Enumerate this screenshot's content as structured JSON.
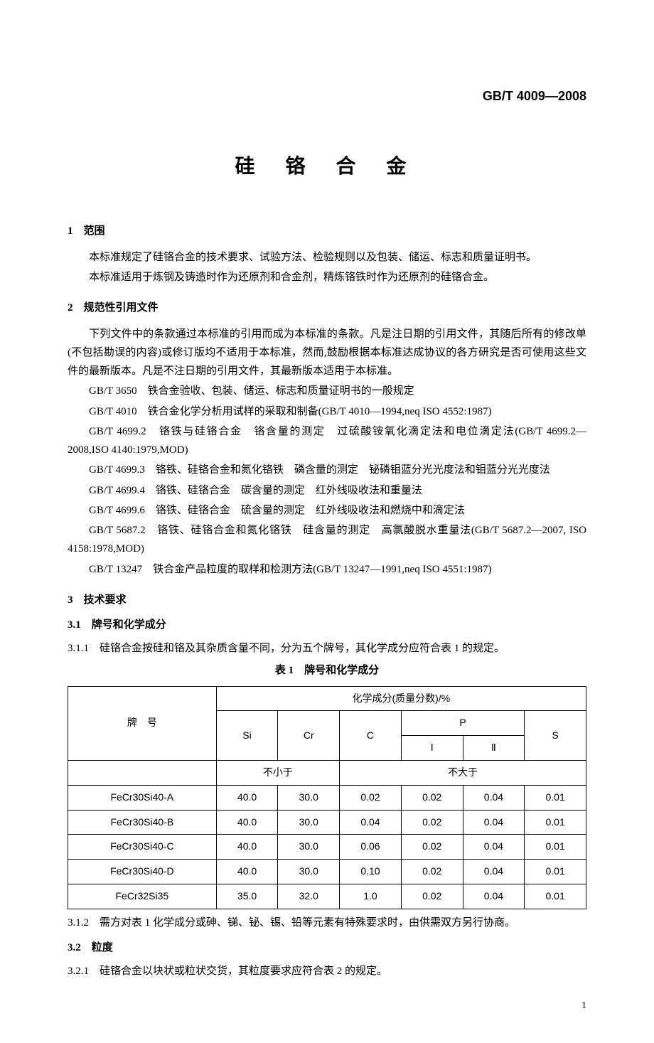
{
  "standard_code": "GB/T 4009—2008",
  "title": "硅 铬 合 金",
  "sections": {
    "s1": {
      "heading": "1　范围",
      "p1": "本标准规定了硅铬合金的技术要求、试验方法、检验规则以及包装、储运、标志和质量证明书。",
      "p2": "本标准适用于炼钢及铸造时作为还原剂和合金剂，精炼铬铁时作为还原剂的硅铬合金。"
    },
    "s2": {
      "heading": "2　规范性引用文件",
      "p1": "下列文件中的条款通过本标准的引用而成为本标准的条款。凡是注日期的引用文件，其随后所有的修改单(不包括勘误的内容)或修订版均不适用于本标准，然而,鼓励根据本标准达成协议的各方研究是否可使用这些文件的最新版本。凡是不注日期的引用文件，其最新版本适用于本标准。",
      "refs": [
        "GB/T 3650　铁合金验收、包装、储运、标志和质量证明书的一般规定",
        "GB/T 4010　铁合金化学分析用试样的采取和制备(GB/T 4010—1994,neq ISO 4552:1987)",
        "GB/T 4699.2　铬铁与硅铬合金　铬含量的测定　过硫酸铵氧化滴定法和电位滴定法(GB/T 4699.2—2008,ISO 4140:1979,MOD)",
        "GB/T 4699.3　铬铁、硅铬合金和氮化铬铁　磷含量的测定　铋磷钼蓝分光光度法和钼蓝分光光度法",
        "GB/T 4699.4　铬铁、硅铬合金　碳含量的测定　红外线吸收法和重量法",
        "GB/T 4699.6　铬铁、硅铬合金　硫含量的测定　红外线吸收法和燃烧中和滴定法",
        "GB/T 5687.2　铬铁、硅铬合金和氮化铬铁　硅含量的测定　高氯酸脱水重量法(GB/T 5687.2—2007, ISO 4158:1978,MOD)",
        "GB/T 13247　铁合金产品粒度的取样和检测方法(GB/T 13247—1991,neq ISO 4551:1987)"
      ]
    },
    "s3": {
      "heading": "3　技术要求",
      "s31": {
        "heading": "3.1　牌号和化学成分",
        "c311": "3.1.1　硅铬合金按硅和铬及其杂质含量不同，分为五个牌号，其化学成分应符合表 1 的规定。",
        "table_caption": "表 1　牌号和化学成分",
        "c312": "3.1.2　需方对表 1 化学成分或砷、锑、铋、锡、铅等元素有特殊要求时，由供需双方另行协商。"
      },
      "s32": {
        "heading": "3.2　粒度",
        "c321": "3.2.1　硅铬合金以块状或粒状交货，其粒度要求应符合表 2 的规定。"
      }
    }
  },
  "table1": {
    "header_top": "化学成分(质量分数)/%",
    "col_brand": "牌　号",
    "col_si": "Si",
    "col_cr": "Cr",
    "col_c": "C",
    "col_p": "P",
    "col_p1": "Ⅰ",
    "col_p2": "Ⅱ",
    "col_s": "S",
    "sub_ge": "不小于",
    "sub_le": "不大于",
    "rows": [
      {
        "brand": "FeCr30Si40-A",
        "si": "40.0",
        "cr": "30.0",
        "c": "0.02",
        "p1": "0.02",
        "p2": "0.04",
        "s": "0.01"
      },
      {
        "brand": "FeCr30Si40-B",
        "si": "40.0",
        "cr": "30.0",
        "c": "0.04",
        "p1": "0.02",
        "p2": "0.04",
        "s": "0.01"
      },
      {
        "brand": "FeCr30Si40-C",
        "si": "40.0",
        "cr": "30.0",
        "c": "0.06",
        "p1": "0.02",
        "p2": "0.04",
        "s": "0.01"
      },
      {
        "brand": "FeCr30Si40-D",
        "si": "40.0",
        "cr": "30.0",
        "c": "0.10",
        "p1": "0.02",
        "p2": "0.04",
        "s": "0.01"
      },
      {
        "brand": "FeCr32Si35",
        "si": "35.0",
        "cr": "32.0",
        "c": "1.0",
        "p1": "0.02",
        "p2": "0.04",
        "s": "0.01"
      }
    ]
  },
  "page_number": "1"
}
